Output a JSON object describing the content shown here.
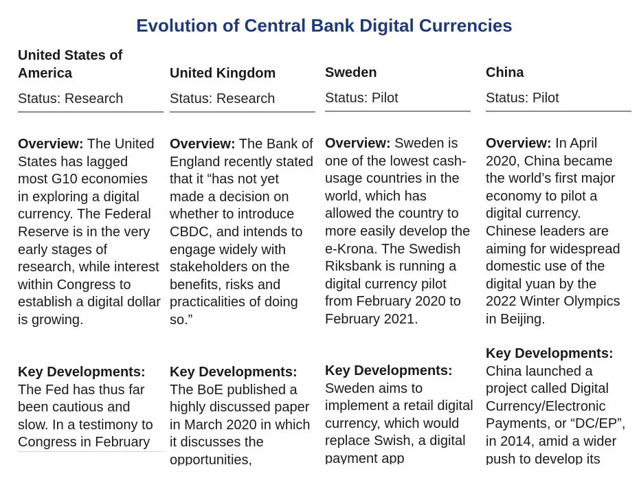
{
  "title": "Evolution of Central Bank Digital Currencies",
  "columns": [
    {
      "country": "United States of America",
      "status": "Status: Research",
      "overview_label": "Overview:",
      "overview": " The United States has lagged most G10 economies in exploring a digital currency. The Federal Reserve is in the very early stages of research, while interest within Congress to establish a digital dollar is growing.",
      "key_label": "Key Developments:",
      "key": "The Fed has thus far been cautious and slow. In a testimony to Congress in February"
    },
    {
      "country": "United Kingdom",
      "status": "Status: Research",
      "overview_label": "Overview:",
      "overview": " The Bank of England recently stated that it “has not yet made a decision on whether to introduce CBDC, and intends to engage widely with stakeholders on the benefits, risks and practicalities of doing so.”",
      "key_label": "Key Developments:",
      "key": "The BoE published a highly discussed paper in March 2020 in which it discusses the opportunities,"
    },
    {
      "country": "Sweden",
      "status": "Status: Pilot",
      "overview_label": "Overview:",
      "overview": " Sweden is one of the lowest cash-usage countries in the world, which has allowed the country to more easily develop the e-Krona. The Swedish Riksbank is running a digital currency pilot from February 2020 to February 2021.",
      "key_label": "Key Developments:",
      "key": "Sweden aims to implement a retail digital currency, which would replace Swish, a digital payment app"
    },
    {
      "country": "China",
      "status": "Status: Pilot",
      "overview_label": "Overview:",
      "overview": " In April 2020, China became the world’s first major economy to pilot a digital currency. Chinese leaders are aiming for widespread domestic use of the digital yuan by the 2022 Winter Olympics in Beijing.",
      "key_label": "Key Developments:",
      "key": "China launched a project called Digital Currency/Electronic Payments, or “DC/EP”, in 2014, amid a wider push to develop its"
    }
  ]
}
